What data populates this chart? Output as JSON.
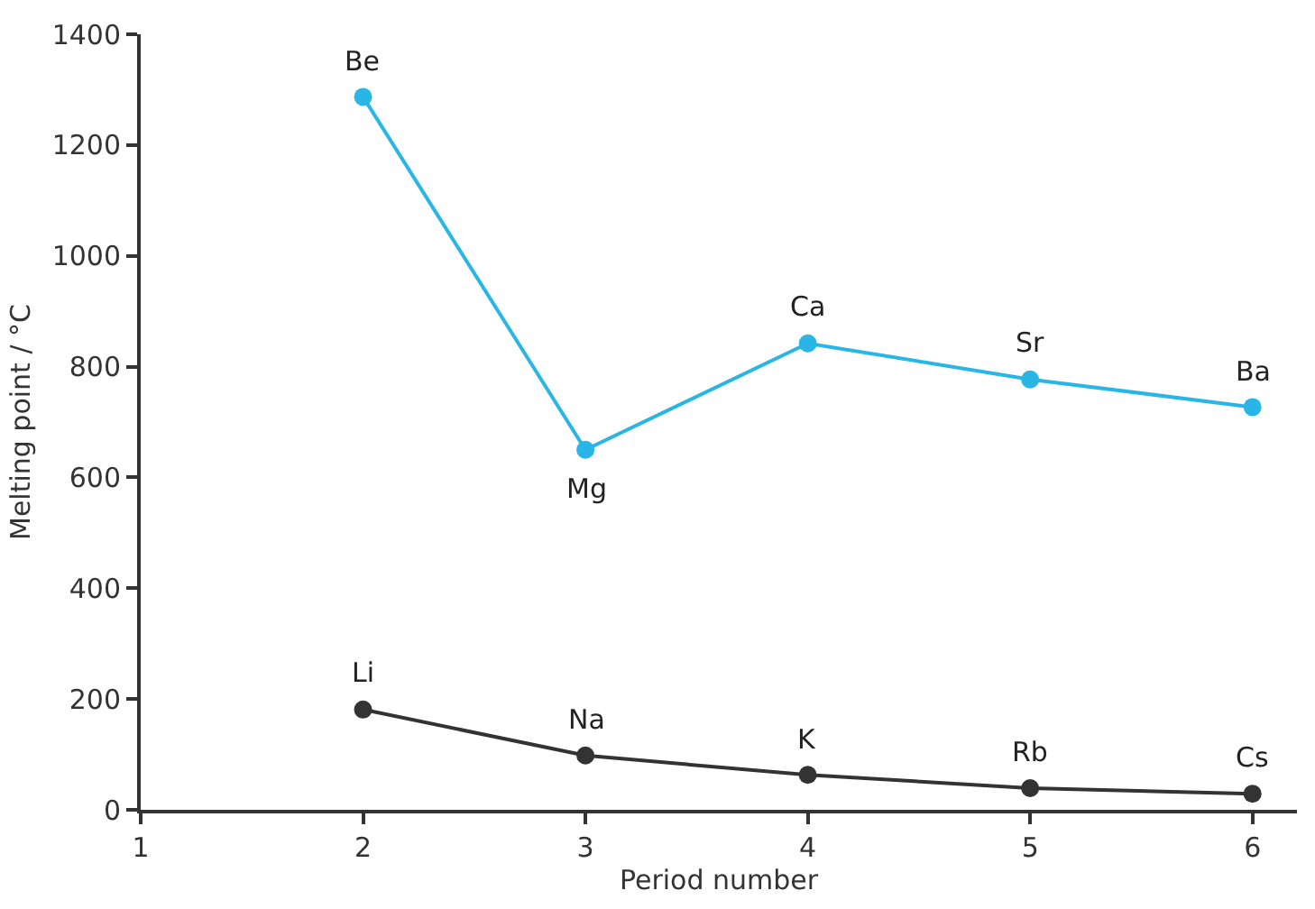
{
  "chart_data": {
    "type": "line",
    "xlabel": "Period number",
    "ylabel": "Melting point / °C",
    "x": [
      2,
      3,
      4,
      5,
      6
    ],
    "series": [
      {
        "color": "#29b6e6",
        "values": [
          1287,
          650,
          842,
          777,
          727
        ]
      },
      {
        "color": "#333333",
        "values": [
          181,
          98,
          63,
          39,
          29
        ]
      }
    ],
    "xlim": [
      1,
      6.2
    ],
    "xticks": [
      1,
      2,
      3,
      4,
      5,
      6
    ],
    "ylim": [
      0,
      1400
    ],
    "yticks": [
      0,
      200,
      400,
      600,
      800,
      1000,
      1200,
      1400
    ],
    "marker": "circle",
    "line_style": "solid",
    "annotations": [
      {
        "text": "Be",
        "x": 2,
        "y": 1287
      },
      {
        "text": "Mg",
        "x": 3,
        "y": 650
      },
      {
        "text": "Ca",
        "x": 4,
        "y": 842
      },
      {
        "text": "Sr",
        "x": 5,
        "y": 777
      },
      {
        "text": "Ba",
        "x": 6,
        "y": 727
      },
      {
        "text": "Li",
        "x": 2,
        "y": 181
      },
      {
        "text": "Na",
        "x": 3,
        "y": 98
      },
      {
        "text": "K",
        "x": 4,
        "y": 63
      },
      {
        "text": "Rb",
        "x": 5,
        "y": 39
      },
      {
        "text": "Cs",
        "x": 6,
        "y": 29
      }
    ]
  }
}
